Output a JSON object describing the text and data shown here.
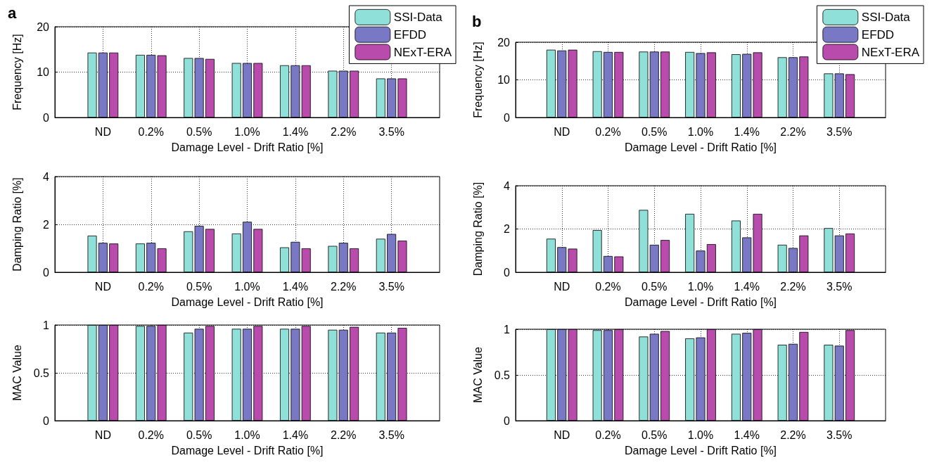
{
  "chart_data": [
    {
      "type": "bar",
      "title": "a",
      "categories": [
        "ND",
        "0.2%",
        "0.5%",
        "1.0%",
        "1.4%",
        "2.2%",
        "3.5%"
      ],
      "xlabel": "Damage Level - Drift Ratio [%]",
      "ylabel": "Frequency [Hz]",
      "ylim": [
        0,
        20
      ],
      "yticks": [
        0,
        10,
        20
      ],
      "grid": true,
      "legend": "top right",
      "series": [
        {
          "name": "SSI-Data",
          "color": "#8fe0d8",
          "values": [
            14.3,
            13.8,
            13.1,
            12.0,
            11.5,
            10.3,
            8.6
          ]
        },
        {
          "name": "EFDD",
          "color": "#7878c4",
          "values": [
            14.3,
            13.8,
            13.1,
            12.0,
            11.5,
            10.3,
            8.6
          ]
        },
        {
          "name": "NExT-ERA",
          "color": "#b84bac",
          "values": [
            14.3,
            13.7,
            12.9,
            12.0,
            11.5,
            10.3,
            8.6
          ]
        }
      ]
    },
    {
      "type": "bar",
      "title": "b",
      "categories": [
        "ND",
        "0.2%",
        "0.5%",
        "1.0%",
        "1.4%",
        "2.2%",
        "3.5%"
      ],
      "xlabel": "Damage Level - Drift Ratio [%]",
      "ylabel": "Frequency [Hz]",
      "ylim": [
        0,
        20
      ],
      "yticks": [
        0,
        10,
        20
      ],
      "grid": true,
      "legend": "top right",
      "series": [
        {
          "name": "SSI-Data",
          "color": "#8fe0d8",
          "values": [
            18.0,
            17.6,
            17.5,
            17.4,
            16.8,
            16.0,
            11.7
          ]
        },
        {
          "name": "EFDD",
          "color": "#7878c4",
          "values": [
            17.8,
            17.4,
            17.5,
            17.1,
            16.9,
            16.0,
            11.7
          ]
        },
        {
          "name": "NExT-ERA",
          "color": "#b84bac",
          "values": [
            18.0,
            17.4,
            17.5,
            17.3,
            17.3,
            16.2,
            11.5
          ]
        }
      ]
    },
    {
      "type": "bar",
      "categories": [
        "ND",
        "0.2%",
        "0.5%",
        "1.0%",
        "1.4%",
        "2.2%",
        "3.5%"
      ],
      "xlabel": "Damage Level - Drift Ratio [%]",
      "ylabel": "Damping Ratio [%]",
      "ylim": [
        0,
        4
      ],
      "yticks": [
        0,
        2,
        4
      ],
      "grid": true,
      "series": [
        {
          "color": "#8fe0d8",
          "values": [
            1.53,
            1.2,
            1.71,
            1.62,
            1.04,
            1.1,
            1.4
          ]
        },
        {
          "color": "#7878c4",
          "values": [
            1.23,
            1.23,
            1.94,
            2.11,
            1.27,
            1.23,
            1.6
          ]
        },
        {
          "color": "#b84bac",
          "values": [
            1.2,
            1.0,
            1.81,
            1.81,
            1.0,
            1.0,
            1.32
          ]
        }
      ]
    },
    {
      "type": "bar",
      "categories": [
        "ND",
        "0.2%",
        "0.5%",
        "1.0%",
        "1.4%",
        "2.2%",
        "3.5%"
      ],
      "xlabel": "Damage Level - Drift Ratio [%]",
      "ylabel": "Damping Ratio [%]",
      "ylim": [
        0,
        4
      ],
      "yticks": [
        0,
        2,
        4
      ],
      "grid": true,
      "series": [
        {
          "color": "#8fe0d8",
          "values": [
            1.55,
            1.95,
            2.88,
            2.7,
            2.39,
            1.27,
            2.04
          ]
        },
        {
          "color": "#7878c4",
          "values": [
            1.16,
            0.75,
            1.27,
            1.0,
            1.61,
            1.12,
            1.7
          ]
        },
        {
          "color": "#b84bac",
          "values": [
            1.09,
            0.73,
            1.49,
            1.3,
            2.7,
            1.7,
            1.79
          ]
        }
      ]
    },
    {
      "type": "bar",
      "categories": [
        "ND",
        "0.2%",
        "0.5%",
        "1.0%",
        "1.4%",
        "2.2%",
        "3.5%"
      ],
      "xlabel": "Damage Level - Drift Ratio [%]",
      "ylabel": "MAC Value",
      "ylim": [
        0,
        1
      ],
      "yticks": [
        0,
        0.5,
        1
      ],
      "grid": true,
      "series": [
        {
          "color": "#8fe0d8",
          "values": [
            1,
            0.99,
            0.92,
            0.96,
            0.96,
            0.95,
            0.92
          ]
        },
        {
          "color": "#7878c4",
          "values": [
            1,
            0.99,
            0.96,
            0.96,
            0.96,
            0.95,
            0.92
          ]
        },
        {
          "color": "#b84bac",
          "values": [
            1,
            1,
            0.99,
            0.99,
            0.99,
            0.98,
            0.97
          ]
        }
      ]
    },
    {
      "type": "bar",
      "categories": [
        "ND",
        "0.2%",
        "0.5%",
        "1.0%",
        "1.4%",
        "2.2%",
        "3.5%"
      ],
      "xlabel": "Damage Level - Drift Ratio [%]",
      "ylabel": "MAC Value",
      "ylim": [
        0,
        1
      ],
      "yticks": [
        0,
        0.5,
        1
      ],
      "grid": true,
      "series": [
        {
          "color": "#8fe0d8",
          "values": [
            1,
            0.99,
            0.92,
            0.9,
            0.95,
            0.83,
            0.83
          ]
        },
        {
          "color": "#7878c4",
          "values": [
            1,
            0.99,
            0.95,
            0.91,
            0.96,
            0.84,
            0.82
          ]
        },
        {
          "color": "#b84bac",
          "values": [
            1,
            1,
            0.98,
            1,
            1,
            0.97,
            0.99
          ]
        }
      ]
    }
  ]
}
